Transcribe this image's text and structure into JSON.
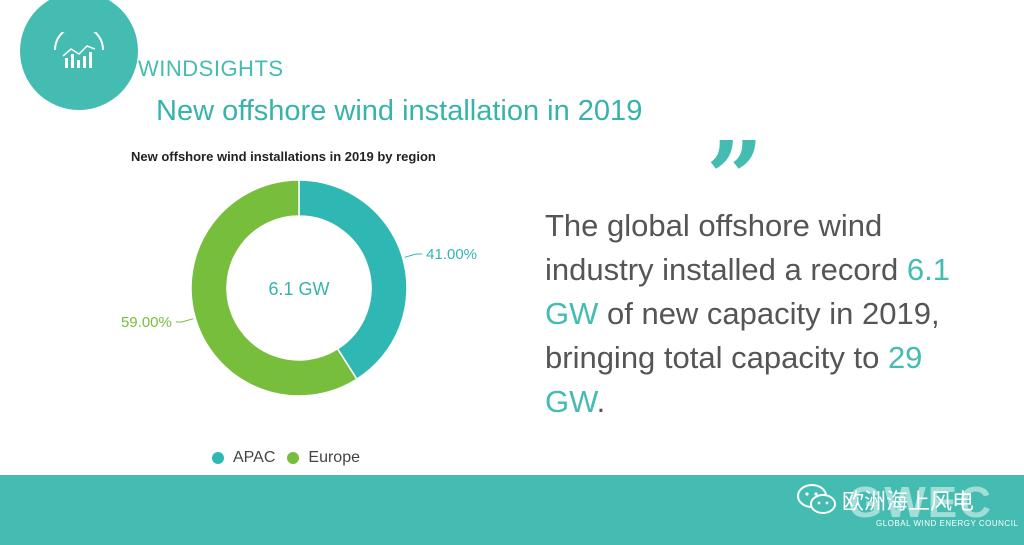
{
  "brand": "WINDSIGHTS",
  "page_title": "New offshore wind installation in 2019",
  "chart_data": {
    "type": "pie",
    "title": "New offshore wind installations in 2019  by region",
    "center_label": "6.1 GW",
    "slices": [
      {
        "name": "APAC",
        "value": 41.0,
        "label": "41.00%",
        "color": "#2fb8b3"
      },
      {
        "name": "Europe",
        "value": 59.0,
        "label": "59.00%",
        "color": "#78be3d"
      }
    ],
    "legend_position": "bottom"
  },
  "quote": {
    "t1": "The global offshore wind industry installed a record ",
    "h1": "6.1 GW",
    "t2": " of new capacity in 2019, bringing total capacity to ",
    "h2": "29 GW",
    "t3": "."
  },
  "footer": {
    "org_letters": "GWEC",
    "org_name": "GLOBAL WIND ENERGY COUNCIL",
    "watermark": "欧洲海上风电"
  },
  "colors": {
    "accent": "#44bcb1",
    "apac": "#2fb8b3",
    "europe": "#78be3d"
  }
}
